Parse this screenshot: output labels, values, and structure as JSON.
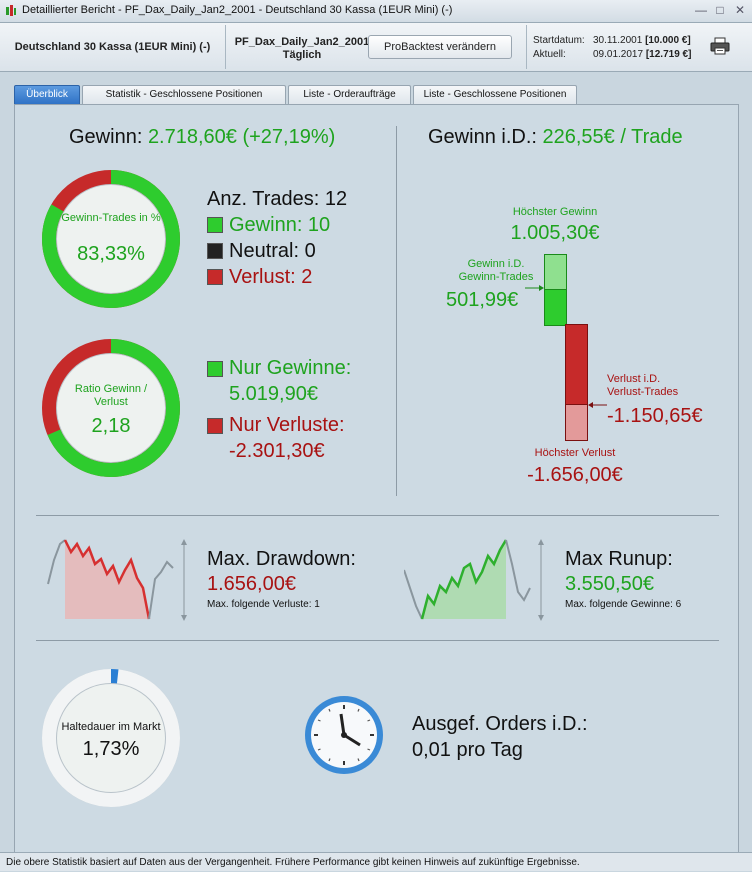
{
  "window": {
    "title": "Detaillierter Bericht - PF_Dax_Daily_Jan2_2001 - Deutschland 30 Kassa (1EUR Mini) (-)",
    "minimize": "—",
    "maximize": "□",
    "close": "✕"
  },
  "header": {
    "instrument": "Deutschland 30 Kassa (1EUR Mini) (-)",
    "portfolio_name": "PF_Dax_Daily_Jan2_2001",
    "timeframe": "Täglich",
    "change_button": "ProBacktest verändern",
    "start_label": "Startdatum:",
    "start_date": "30.11.2001",
    "start_capital": "[10.000 €]",
    "current_label": "Aktuell:",
    "current_date": "09.01.2017",
    "current_capital": "[12.719 €]",
    "print_icon": "printer-icon"
  },
  "tabs": [
    {
      "label": "Überblick",
      "active": true
    },
    {
      "label": "Statistik - Geschlossene Positionen",
      "active": false
    },
    {
      "label": "Liste - Orderaufträge",
      "active": false
    },
    {
      "label": "Liste - Geschlossene Positionen",
      "active": false
    }
  ],
  "gain": {
    "label": "Gewinn: ",
    "value": "2.718,60€ (+27,19%)"
  },
  "win_ring": {
    "label": "Gewinn-Trades in %",
    "value": "83,33%",
    "fraction": 0.8333
  },
  "trades": {
    "count_label": "Anz. Trades: 12",
    "win_label": "Gewinn: 10",
    "neutral_label": "Neutral: 0",
    "loss_label": "Verlust: 2"
  },
  "ratio_ring": {
    "label": "Ratio Gewinn / Verlust",
    "value": "2,18",
    "fraction": 0.6856
  },
  "totals": {
    "gains_label": "Nur Gewinne:",
    "gains_value": "5.019,90€",
    "losses_label": "Nur Verluste:",
    "losses_value": "-2.301,30€"
  },
  "avg": {
    "label": "Gewinn i.D.: ",
    "value": "226,55€ / Trade",
    "highest_label": "Höchster Gewinn",
    "highest_value": "1.005,30€",
    "avg_win_label_1": "Gewinn i.D.",
    "avg_win_label_2": "Gewinn-Trades",
    "avg_win_value": "501,99€",
    "avg_loss_label_1": "Verlust i.D.",
    "avg_loss_label_2": "Verlust-Trades",
    "avg_loss_value": "-1.150,65€",
    "lowest_label": "Höchster Verlust",
    "lowest_value": "-1.656,00€"
  },
  "drawdown": {
    "title": "Max. Drawdown:",
    "value": "1.656,00€",
    "sub": "Max. folgende Verluste: 1"
  },
  "runup": {
    "title": "Max Runup:",
    "value": "3.550,50€",
    "sub": "Max. folgende Gewinne: 6"
  },
  "market_ring": {
    "label": "Haltedauer im Markt",
    "value": "1,73%",
    "fraction": 0.0173
  },
  "orders": {
    "title": "Ausgef. Orders i.D.:",
    "value": "0,01 pro Tag"
  },
  "footer": "Die obere Statistik basiert auf Daten aus der Vergangenheit. Frühere Performance gibt keinen Hinweis auf zukünftige Ergebnisse.",
  "colors": {
    "green": "#2ecc2e",
    "red": "#c62a2a",
    "blue": "#2a7fd4",
    "text_green": "#1ea31e",
    "text_red": "#a81212"
  }
}
